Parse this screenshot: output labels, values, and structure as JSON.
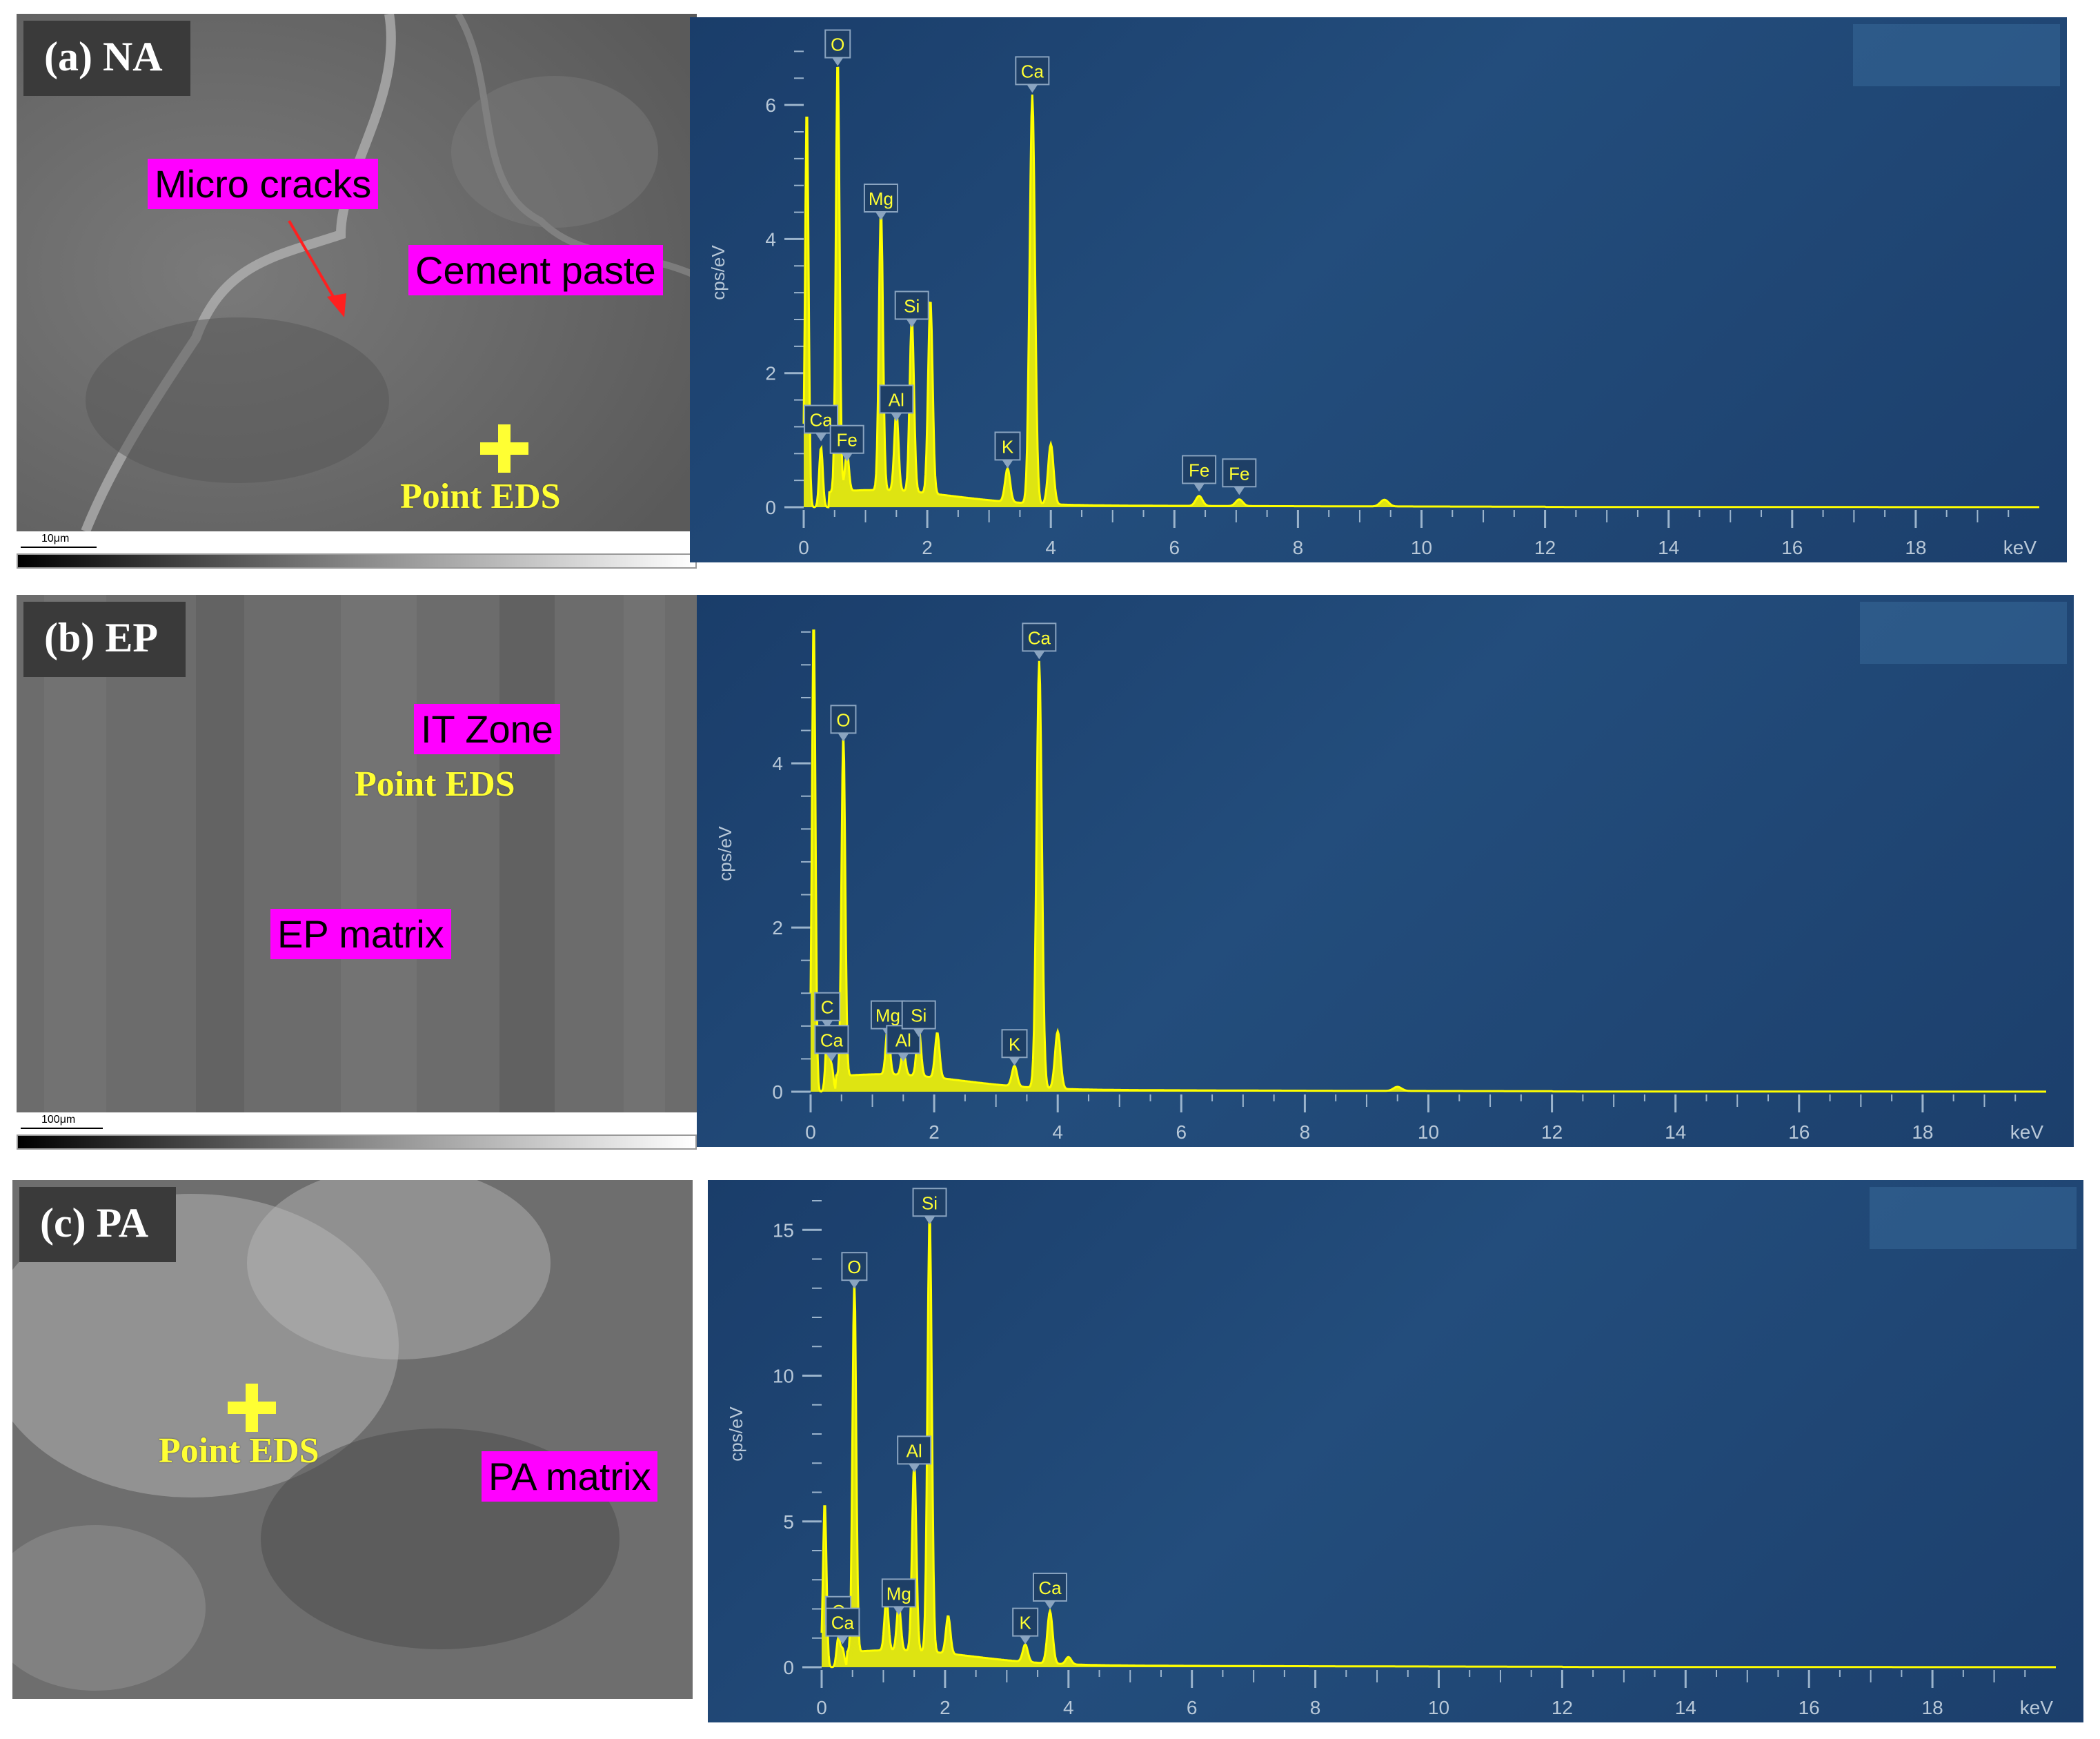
{
  "panels": [
    {
      "label": "(a) NA",
      "annotations": {
        "micro_cracks": "Micro cracks",
        "cement_paste": "Cement paste",
        "point_eds": "Point EDS"
      },
      "scalebar": "10μm"
    },
    {
      "label": "(b) EP",
      "annotations": {
        "it_zone": "IT Zone",
        "point_eds": "Point EDS",
        "ep_matrix": "EP matrix"
      },
      "scalebar": "100μm"
    },
    {
      "label": "(c) PA",
      "annotations": {
        "point_eds": "Point EDS",
        "pa_matrix": "PA matrix"
      }
    }
  ],
  "chart_data": [
    {
      "type": "line",
      "title": "",
      "xlabel": "keV",
      "ylabel": "cps/eV",
      "xlim": [
        0,
        20
      ],
      "ylim": [
        0,
        7
      ],
      "yticks": [
        0,
        2,
        4,
        6
      ],
      "xticks": [
        0,
        2,
        4,
        6,
        8,
        10,
        12,
        14,
        16,
        18
      ],
      "color": "#ffff00",
      "peaks": [
        {
          "x": 0.05,
          "y": 6.0
        },
        {
          "x": 0.28,
          "y": 0.9,
          "label": "Ca"
        },
        {
          "x": 0.55,
          "y": 6.5,
          "label": "O"
        },
        {
          "x": 0.7,
          "y": 0.6,
          "label": "Fe"
        },
        {
          "x": 1.25,
          "y": 4.2,
          "label": "Mg"
        },
        {
          "x": 1.5,
          "y": 1.2,
          "label": "Al"
        },
        {
          "x": 1.75,
          "y": 2.6,
          "label": "Si"
        },
        {
          "x": 2.05,
          "y": 2.9
        },
        {
          "x": 3.3,
          "y": 0.5,
          "label": "K"
        },
        {
          "x": 3.7,
          "y": 6.1,
          "label": "Ca"
        },
        {
          "x": 4.0,
          "y": 0.9
        },
        {
          "x": 6.4,
          "y": 0.15,
          "label": "Fe"
        },
        {
          "x": 7.05,
          "y": 0.1,
          "label": "Fe"
        },
        {
          "x": 9.4,
          "y": 0.1
        }
      ]
    },
    {
      "type": "line",
      "title": "",
      "xlabel": "keV",
      "ylabel": "cps/eV",
      "xlim": [
        0,
        20
      ],
      "ylim": [
        0,
        5.8
      ],
      "yticks": [
        0,
        2,
        4
      ],
      "xticks": [
        0,
        2,
        4,
        6,
        8,
        10,
        12,
        14,
        16,
        18
      ],
      "color": "#ffff00",
      "peaks": [
        {
          "x": 0.05,
          "y": 5.8
        },
        {
          "x": 0.27,
          "y": 0.7,
          "label": "C"
        },
        {
          "x": 0.34,
          "y": 0.3,
          "label": "Ca"
        },
        {
          "x": 0.53,
          "y": 4.2,
          "label": "O"
        },
        {
          "x": 1.25,
          "y": 0.6,
          "label": "Mg"
        },
        {
          "x": 1.5,
          "y": 0.3,
          "label": "Al"
        },
        {
          "x": 1.75,
          "y": 0.6,
          "label": "Si"
        },
        {
          "x": 2.05,
          "y": 0.55
        },
        {
          "x": 3.3,
          "y": 0.25,
          "label": "K"
        },
        {
          "x": 3.7,
          "y": 5.2,
          "label": "Ca"
        },
        {
          "x": 4.0,
          "y": 0.7
        },
        {
          "x": 9.5,
          "y": 0.05
        }
      ]
    },
    {
      "type": "line",
      "title": "",
      "xlabel": "keV",
      "ylabel": "cps/eV",
      "xlim": [
        0,
        20
      ],
      "ylim": [
        0,
        16
      ],
      "yticks": [
        0,
        5,
        10,
        15
      ],
      "xticks": [
        0,
        2,
        4,
        6,
        8,
        10,
        12,
        14,
        16,
        18
      ],
      "color": "#ffff00",
      "peaks": [
        {
          "x": 0.05,
          "y": 5.7
        },
        {
          "x": 0.27,
          "y": 1.0,
          "label": "C"
        },
        {
          "x": 0.34,
          "y": 0.6,
          "label": "Ca"
        },
        {
          "x": 0.53,
          "y": 12.8,
          "label": "O"
        },
        {
          "x": 1.05,
          "y": 1.8
        },
        {
          "x": 1.25,
          "y": 1.6,
          "label": "Mg"
        },
        {
          "x": 1.5,
          "y": 6.5,
          "label": "Al"
        },
        {
          "x": 1.75,
          "y": 15.0,
          "label": "Si"
        },
        {
          "x": 2.05,
          "y": 1.3
        },
        {
          "x": 3.3,
          "y": 0.6,
          "label": "K"
        },
        {
          "x": 3.7,
          "y": 1.8,
          "label": "Ca"
        },
        {
          "x": 4.0,
          "y": 0.25
        }
      ]
    }
  ]
}
